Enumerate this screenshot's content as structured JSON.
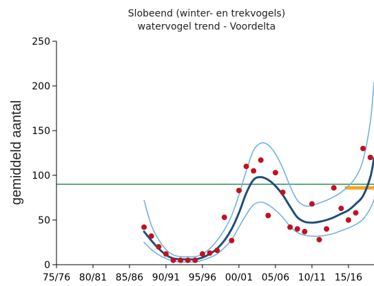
{
  "chart_data": {
    "type": "line",
    "title": "Slobeend (winter- en trekvogels)",
    "subtitle": "watervogel trend - Voordelta",
    "xlabel": "",
    "ylabel": "gemiddeld aantal",
    "xlim": [
      1975,
      2018.5
    ],
    "ylim": [
      0,
      250
    ],
    "grid": false,
    "x_tick_values": [
      1975,
      1980,
      1985,
      1990,
      1995,
      2000,
      2005,
      2010,
      2015
    ],
    "x_tick_labels": [
      "75/76",
      "80/81",
      "85/86",
      "90/91",
      "95/96",
      "00/01",
      "05/06",
      "10/11",
      "15/16"
    ],
    "y_tick_values": [
      0,
      50,
      100,
      150,
      200,
      250
    ],
    "y_tick_labels": [
      "0",
      "50",
      "100",
      "150",
      "200",
      "250"
    ],
    "reference_line": {
      "y": 90,
      "color": "#2e8b57"
    },
    "target_segment": {
      "x_start": 2014.5,
      "x_end": 2018.5,
      "y": 86,
      "color": "#f5a623"
    },
    "colors": {
      "trend": "#1f4e79",
      "ci": "#6fb3dd",
      "points": "#c1121f",
      "axis": "#000000"
    },
    "series": [
      {
        "role": "trend",
        "x": [
          1987,
          1988,
          1989,
          1990,
          1991,
          1992,
          1993,
          1994,
          1995,
          1996,
          1997,
          1998,
          1999,
          2000,
          2001,
          2002,
          2003,
          2004,
          2005,
          2006,
          2007,
          2008,
          2009,
          2010,
          2011,
          2012,
          2013,
          2014,
          2015,
          2016,
          2017,
          2018,
          2018.5
        ],
        "values": [
          37,
          27,
          18,
          11,
          7,
          6,
          6,
          6,
          8,
          12,
          18,
          27,
          40,
          58,
          80,
          95,
          98,
          95,
          88,
          78,
          65,
          53,
          48,
          47,
          48,
          50,
          53,
          57,
          61,
          68,
          77,
          98,
          119
        ]
      },
      {
        "role": "ci-upper",
        "x": [
          1987,
          1988,
          1989,
          1990,
          1991,
          1992,
          1993,
          1994,
          1995,
          1996,
          1997,
          1998,
          1999,
          2000,
          2001,
          2002,
          2003,
          2004,
          2005,
          2006,
          2007,
          2008,
          2009,
          2010,
          2011,
          2012,
          2013,
          2014,
          2015,
          2016,
          2017,
          2018,
          2018.5
        ],
        "values": [
          72,
          44,
          28,
          17,
          11,
          9,
          9,
          9,
          12,
          18,
          27,
          39,
          55,
          78,
          105,
          128,
          136,
          134,
          124,
          108,
          88,
          72,
          66,
          66,
          69,
          72,
          76,
          81,
          88,
          98,
          117,
          160,
          204
        ]
      },
      {
        "role": "ci-lower",
        "x": [
          1987,
          1988,
          1989,
          1990,
          1991,
          1992,
          1993,
          1994,
          1995,
          1996,
          1997,
          1998,
          1999,
          2000,
          2001,
          2002,
          2003,
          2004,
          2005,
          2006,
          2007,
          2008,
          2009,
          2010,
          2011,
          2012,
          2013,
          2014,
          2015,
          2016,
          2017,
          2018,
          2018.5
        ],
        "values": [
          25,
          17,
          11,
          7,
          4,
          3,
          3,
          3,
          5,
          8,
          12,
          19,
          28,
          42,
          56,
          67,
          70,
          67,
          61,
          53,
          43,
          36,
          33,
          32,
          32,
          33,
          35,
          38,
          41,
          45,
          51,
          63,
          73
        ]
      },
      {
        "role": "observed",
        "x": [
          1987,
          1988,
          1989,
          1990,
          1991,
          1992,
          1993,
          1994,
          1995,
          1996,
          1997,
          1998,
          1999,
          2000,
          2001,
          2002,
          2003,
          2004,
          2005,
          2006,
          2007,
          2008,
          2009,
          2010,
          2011,
          2012,
          2013,
          2014,
          2015,
          2016,
          2017,
          2018
        ],
        "values": [
          42,
          32,
          20,
          12,
          5,
          5,
          5,
          5,
          12,
          13,
          16,
          53,
          27,
          83,
          110,
          105,
          117,
          55,
          103,
          81,
          42,
          40,
          37,
          68,
          28,
          40,
          86,
          63,
          50,
          58,
          130,
          120
        ]
      }
    ]
  }
}
